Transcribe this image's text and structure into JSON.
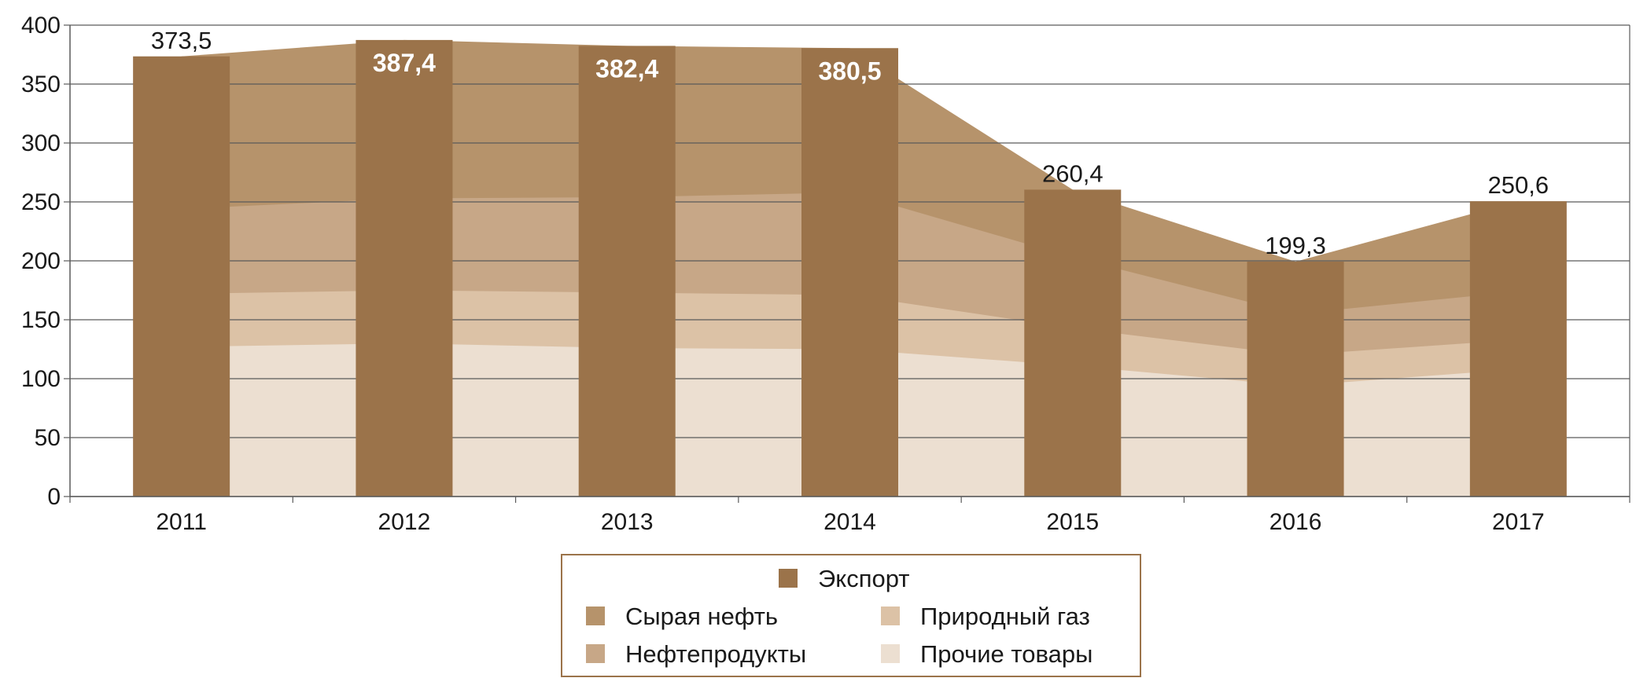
{
  "chart_data": {
    "type": "bar",
    "categories": [
      "2011",
      "2012",
      "2013",
      "2014",
      "2015",
      "2016",
      "2017"
    ],
    "ylim": [
      0,
      400
    ],
    "yticks": [
      0,
      50,
      100,
      150,
      200,
      250,
      300,
      350,
      400
    ],
    "grid": true,
    "legend_position": "bottom",
    "bars": {
      "name": "Экспорт",
      "color": "#9b734a",
      "values": [
        373.5,
        387.4,
        382.4,
        380.5,
        260.4,
        199.3,
        250.6
      ],
      "labels": [
        "373,5",
        "387,4",
        "382,4",
        "380,5",
        "260,4",
        "199,3",
        "250,6"
      ],
      "label_inside": [
        false,
        true,
        true,
        true,
        false,
        false,
        false
      ]
    },
    "area_series": [
      {
        "name": "Прочие товары",
        "color": "#ecdfd1",
        "values": [
          127,
          130,
          126,
          125,
          111,
          94,
          108
        ]
      },
      {
        "name": "Природный газ",
        "color": "#dcc2a6",
        "values": [
          45,
          45,
          47,
          46,
          32,
          26,
          25
        ]
      },
      {
        "name": "Нефтепродукты",
        "color": "#c7a787",
        "values": [
          72,
          78,
          81,
          87,
          60,
          35,
          41
        ]
      },
      {
        "name": "Сырая нефть",
        "color": "#b6936b",
        "values": [
          129.5,
          134.4,
          128.4,
          122.5,
          57.4,
          44.3,
          76.6
        ]
      }
    ],
    "legend": {
      "title_entry": "Экспорт",
      "left_column": [
        "Сырая нефть",
        "Нефтепродукты"
      ],
      "right_column": [
        "Природный газ",
        "Прочие товары"
      ]
    }
  }
}
